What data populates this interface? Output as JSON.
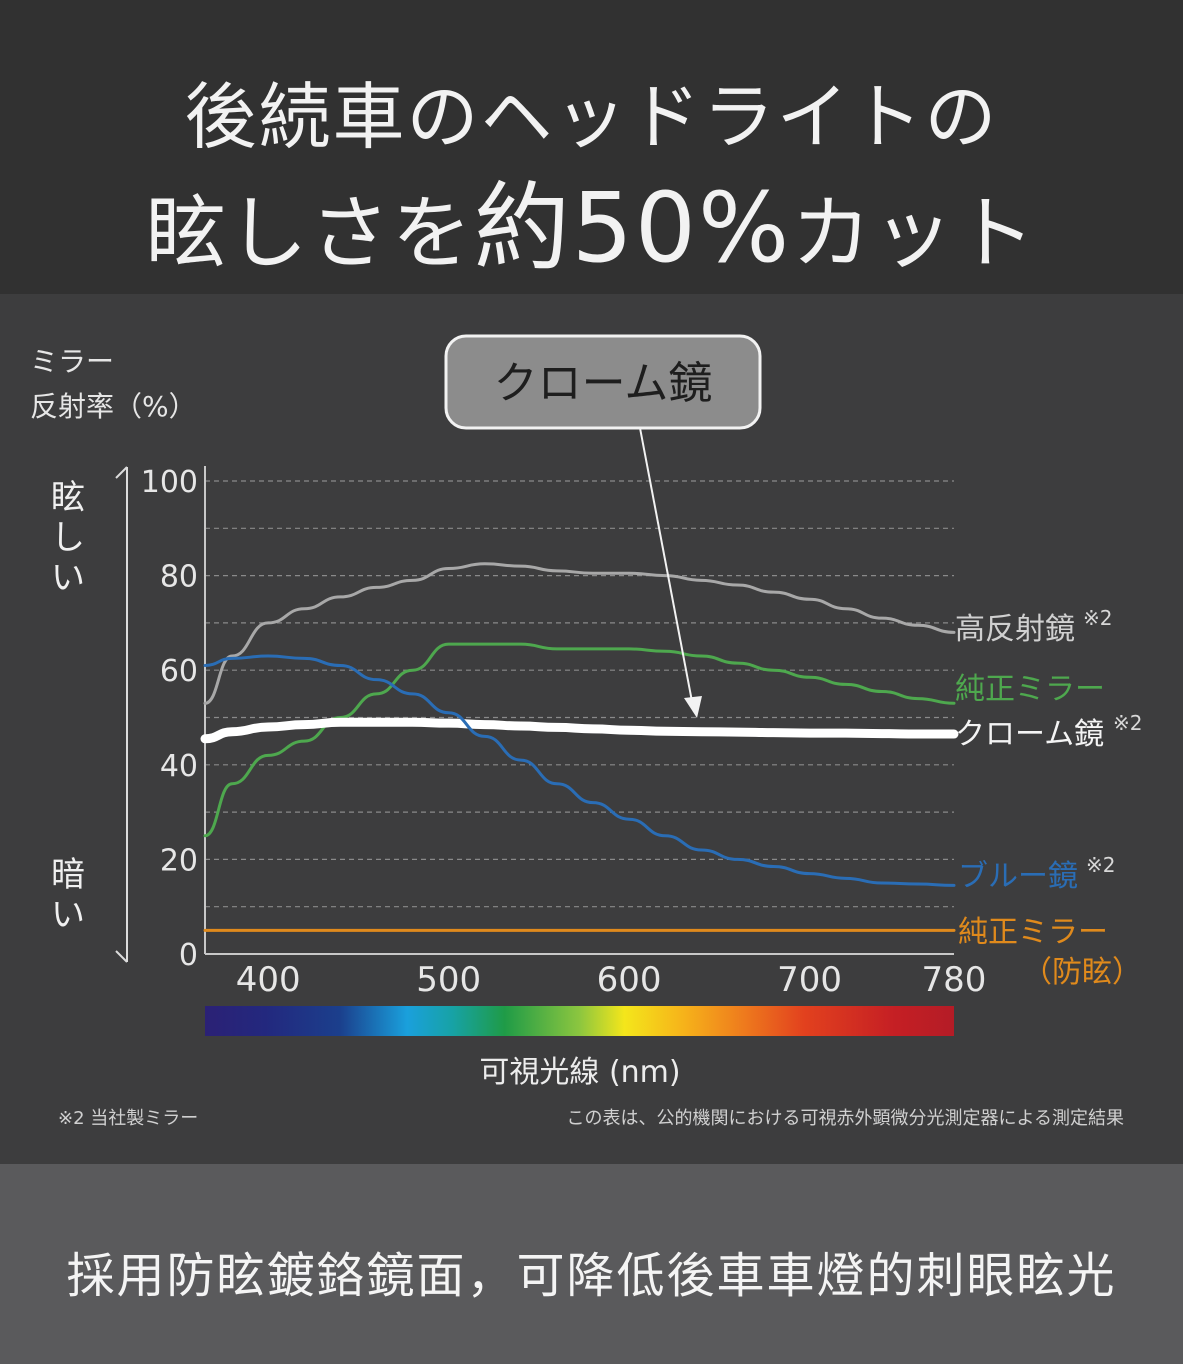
{
  "header": {
    "line1": "後続車のヘッドライトの",
    "line2_prefix": "眩しさを",
    "line2_big": "約50%",
    "line2_suffix": "カット"
  },
  "chart": {
    "ylabel_line1": "ミラー",
    "ylabel_line2": "反射率（%）",
    "bright_label": "眩しい",
    "dark_label": "暗い",
    "callout": "クローム鏡",
    "xlabel": "可視光線 (nm)",
    "note_left": "※2 当社製ミラー",
    "note_right": "この表は、公的機関における可視赤外顕微分光測定器による測定結果",
    "fangen": "（防眩）"
  },
  "chart_data": {
    "type": "line",
    "xlabel": "可視光線 (nm)",
    "ylabel": "ミラー 反射率（%）",
    "xlim": [
      365,
      780
    ],
    "ylim": [
      0,
      100
    ],
    "x_ticks": [
      400,
      500,
      600,
      700,
      780
    ],
    "y_ticks": [
      0,
      20,
      40,
      60,
      80,
      100
    ],
    "grid": "dashed horizontal every 10%",
    "series": [
      {
        "name": "高反射鏡",
        "note": "※2",
        "color": "#a8a8a8",
        "width": 3,
        "x": [
          365,
          380,
          400,
          420,
          440,
          460,
          480,
          500,
          520,
          540,
          560,
          580,
          600,
          620,
          640,
          660,
          680,
          700,
          720,
          740,
          760,
          780
        ],
        "y": [
          53,
          63,
          70,
          73,
          75.5,
          77.5,
          79,
          81.5,
          82.5,
          82,
          81,
          80.5,
          80.5,
          80,
          79,
          78,
          76.5,
          75,
          73,
          71,
          69.5,
          68
        ]
      },
      {
        "name": "純正ミラー",
        "color": "#4ea84e",
        "width": 3,
        "x": [
          365,
          380,
          400,
          420,
          440,
          460,
          480,
          500,
          520,
          540,
          560,
          580,
          600,
          620,
          640,
          660,
          680,
          700,
          720,
          740,
          760,
          780
        ],
        "y": [
          25,
          36,
          42,
          45,
          50,
          55,
          60,
          65.5,
          65.5,
          65.5,
          64.5,
          64.5,
          64.5,
          64,
          63,
          61.5,
          60,
          58.5,
          57,
          55.5,
          54,
          53
        ]
      },
      {
        "name": "クローム鏡",
        "note": "※2",
        "color": "#ffffff",
        "width": 9,
        "x": [
          365,
          380,
          400,
          420,
          440,
          460,
          480,
          500,
          520,
          540,
          560,
          580,
          600,
          620,
          640,
          660,
          680,
          700,
          720,
          740,
          760,
          780
        ],
        "y": [
          45.5,
          47,
          48,
          48.5,
          49,
          49,
          49,
          48.8,
          48.5,
          48.2,
          47.9,
          47.6,
          47.3,
          47.1,
          47,
          46.9,
          46.8,
          46.7,
          46.7,
          46.6,
          46.5,
          46.5
        ]
      },
      {
        "name": "ブルー鏡",
        "note": "※2",
        "color": "#2a6db5",
        "width": 3,
        "x": [
          365,
          380,
          400,
          420,
          440,
          460,
          480,
          500,
          520,
          540,
          560,
          580,
          600,
          620,
          640,
          660,
          680,
          700,
          720,
          740,
          760,
          780
        ],
        "y": [
          61,
          62.5,
          63,
          62.5,
          61,
          58,
          55,
          51,
          46,
          41,
          36,
          32,
          28.5,
          25,
          22,
          20,
          18.5,
          17,
          16,
          15,
          14.8,
          14.5
        ]
      },
      {
        "name": "純正ミラー（防眩）",
        "color": "#e08a1c",
        "width": 3,
        "x": [
          365,
          780
        ],
        "y": [
          5,
          5
        ]
      }
    ]
  },
  "colors": {
    "header_bg": "#313131",
    "chart_bg": "#3d3d3e",
    "footer_bg": "#5a5a5c",
    "callout_bg": "#8c8c8c"
  },
  "footer": {
    "text": "採用防眩鍍鉻鏡面，可降低後車車燈的刺眼眩光"
  }
}
